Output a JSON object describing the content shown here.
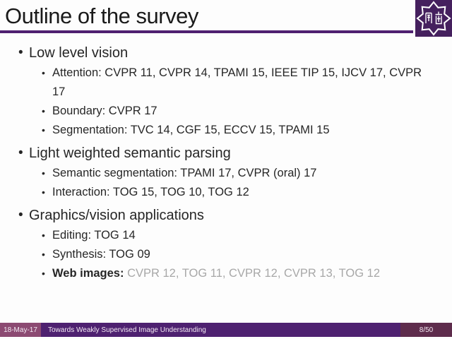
{
  "slide": {
    "title": "Outline of the survey",
    "logo_name": "nankai-university-emblem",
    "outline": [
      {
        "level": 1,
        "text": "Low level vision",
        "muted": "",
        "strong": false
      },
      {
        "level": 2,
        "text": "Attention: CVPR 11, CVPR 14, TPAMI 15, IEEE TIP 15, IJCV 17, CVPR 17",
        "muted": "",
        "strong": false
      },
      {
        "level": 2,
        "text": "Boundary: CVPR 17",
        "muted": "",
        "strong": false
      },
      {
        "level": 2,
        "text": "Segmentation: TVC 14, CGF 15, ECCV 15, TPAMI 15",
        "muted": "",
        "strong": false
      },
      {
        "level": 1,
        "text": "Light weighted semantic parsing",
        "muted": "",
        "strong": false
      },
      {
        "level": 2,
        "text": "Semantic segmentation: TPAMI 17, CVPR (oral) 17",
        "muted": "",
        "strong": false
      },
      {
        "level": 2,
        "text": "Interaction: TOG 15, TOG 10, TOG 12",
        "muted": "",
        "strong": false
      },
      {
        "level": 1,
        "text": "Graphics/vision applications",
        "muted": "",
        "strong": false
      },
      {
        "level": 2,
        "text": "Editing: TOG 14",
        "muted": "",
        "strong": false
      },
      {
        "level": 2,
        "text": "Synthesis: TOG 09",
        "muted": "",
        "strong": false
      },
      {
        "level": 2,
        "text": "Web images: ",
        "muted": "CVPR 12, TOG 11, CVPR 12, CVPR 13, TOG 12",
        "strong": true
      }
    ],
    "footer": {
      "date": "18-May-17",
      "title": "Towards Weakly Supervised Image Understanding",
      "page": "8/50"
    },
    "colors": {
      "accent": "#4f2170",
      "logo_bg": "#45205e",
      "muted_text": "#a8a8a8",
      "footer_left": "#8c4a72",
      "footer_mid": "#4e2170",
      "footer_right": "#5e2c4c"
    }
  }
}
